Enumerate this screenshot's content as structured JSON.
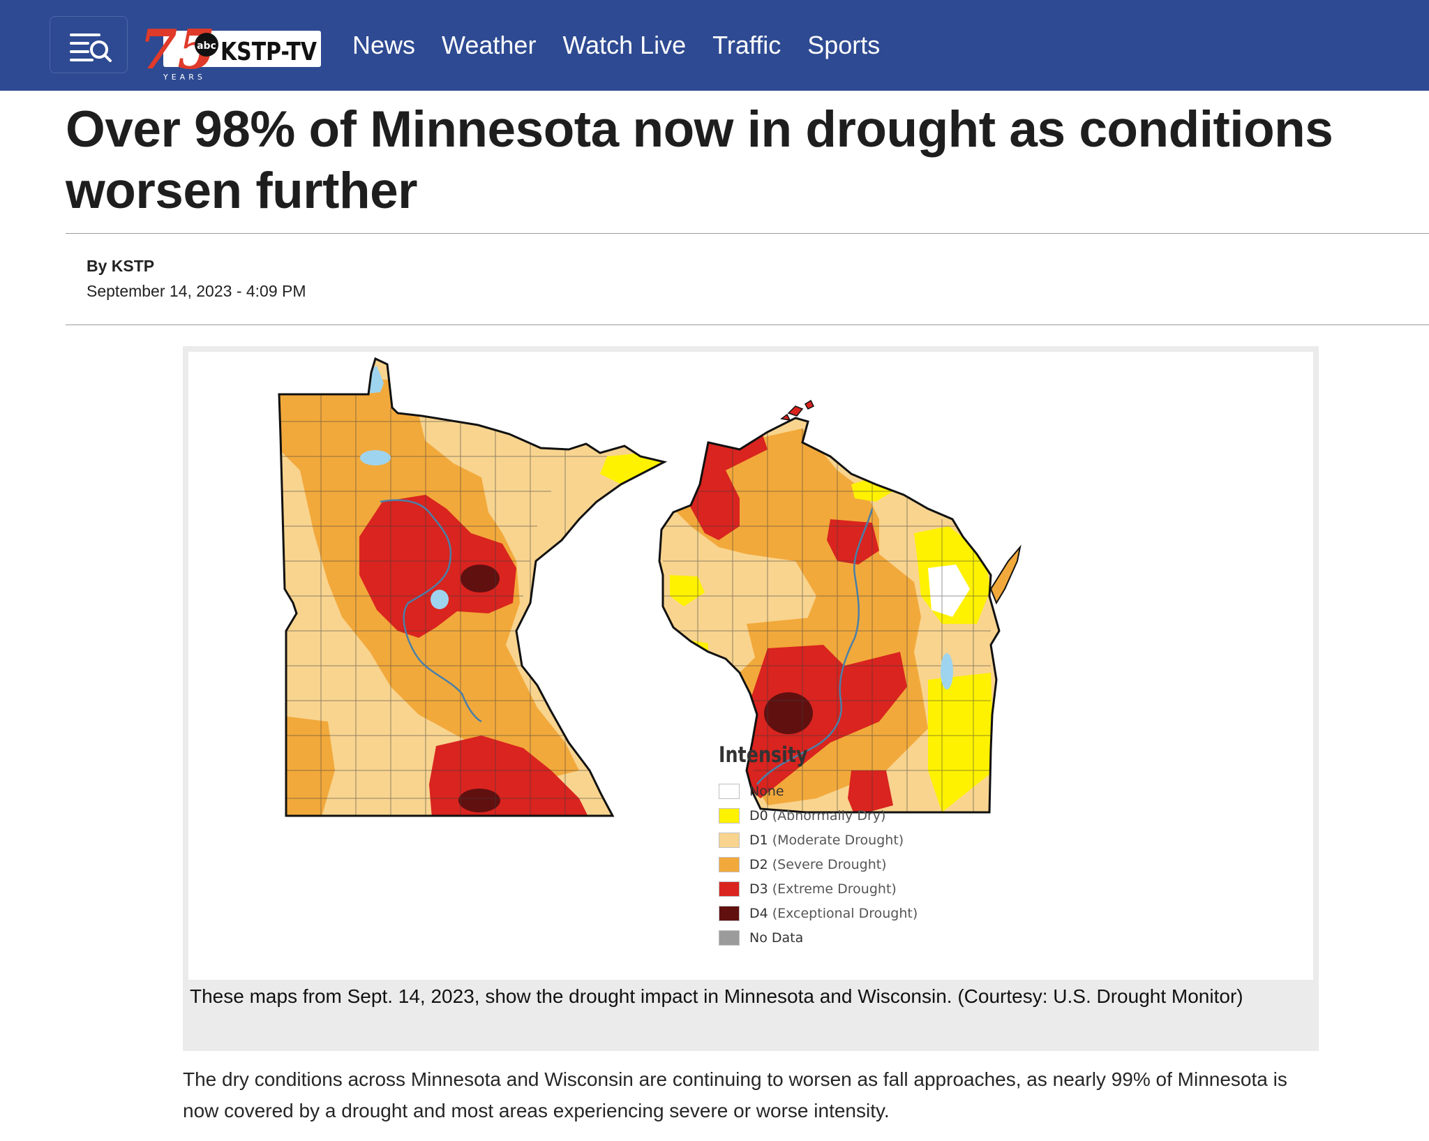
{
  "nav": {
    "menu_label": "Menu",
    "logo": {
      "anniversary": "75",
      "network": "abc",
      "station": "KSTP-TV",
      "years": "YEARS"
    },
    "links": [
      "News",
      "Weather",
      "Watch Live",
      "Traffic",
      "Sports"
    ]
  },
  "article": {
    "headline": "Over 98% of Minnesota now in drought as conditions worsen further",
    "byline": "By KSTP",
    "date": "September 14, 2023 - 4:09 PM",
    "figure": {
      "caption": "These maps from Sept. 14, 2023, show the drought impact in Minnesota and Wisconsin. (Courtesy: U.S. Drought Monitor)",
      "legend": {
        "title": "Intensity",
        "items": [
          {
            "code": "None",
            "desc": "",
            "color": "#ffffff"
          },
          {
            "code": "D0",
            "desc": "(Abnormally Dry)",
            "color": "#ffff00"
          },
          {
            "code": "D1",
            "desc": "(Moderate Drought)",
            "color": "#fcd37f"
          },
          {
            "code": "D2",
            "desc": "(Severe Drought)",
            "color": "#ffaa00"
          },
          {
            "code": "D3",
            "desc": "(Extreme Drought)",
            "color": "#e60000"
          },
          {
            "code": "D4",
            "desc": "(Exceptional Drought)",
            "color": "#730000"
          },
          {
            "code": "No Data",
            "desc": "",
            "color": "#9b9b9b"
          }
        ]
      }
    },
    "body": "The dry conditions across Minnesota and Wisconsin are continuing to worsen as fall approaches, as nearly 99% of Minnesota is now covered by a drought and most areas experiencing severe or worse intensity."
  },
  "colors": {
    "nav_bg": "#2e4a92",
    "d0": "#fff200",
    "d1": "#f8d48f",
    "d2": "#f2a93b",
    "d3": "#d9241f",
    "d4": "#611010",
    "water": "#9fd4ef",
    "river": "#4a7fa8"
  }
}
